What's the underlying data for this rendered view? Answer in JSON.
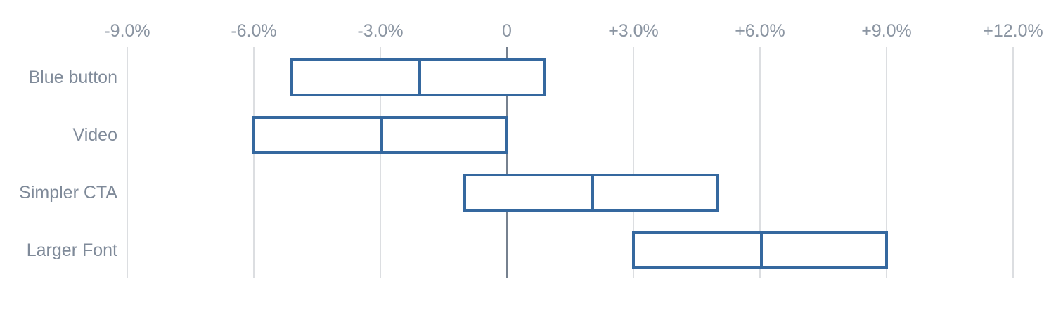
{
  "chart_data": {
    "type": "bar",
    "subtype": "horizontal-range-box",
    "title": "",
    "xlabel": "",
    "ylabel": "",
    "unit": "%",
    "grid": true,
    "legend": false,
    "xlim": [
      -9,
      12
    ],
    "categories": [
      "Blue button",
      "Video",
      "Simpler CTA",
      "Larger Font"
    ],
    "series": [
      {
        "name": "Blue button",
        "low": -5.1,
        "center": -2.1,
        "high": 0.9
      },
      {
        "name": "Video",
        "low": -6.0,
        "center": -3.0,
        "high": 0.0
      },
      {
        "name": "Simpler CTA",
        "low": -1.0,
        "center": 2.0,
        "high": 5.0
      },
      {
        "name": "Larger Font",
        "low": 3.0,
        "center": 6.0,
        "high": 9.0
      }
    ],
    "x_ticks": [
      {
        "value": -9,
        "label": "-9.0%"
      },
      {
        "value": -6,
        "label": "-6.0%"
      },
      {
        "value": -3,
        "label": "-3.0%"
      },
      {
        "value": 0,
        "label": "0"
      },
      {
        "value": 3,
        "label": "+3.0%"
      },
      {
        "value": 6,
        "label": "+6.0%"
      },
      {
        "value": 9,
        "label": "+9.0%"
      },
      {
        "value": 12,
        "label": "+12.0%"
      }
    ],
    "colors": {
      "box_border": "#35689f",
      "box_fill": "#ffffff",
      "gridline": "#dcdee1",
      "zero_line": "#76818f",
      "tick_label": "#8b95a2",
      "row_label": "#7f8a99",
      "background": "#ffffff"
    }
  }
}
